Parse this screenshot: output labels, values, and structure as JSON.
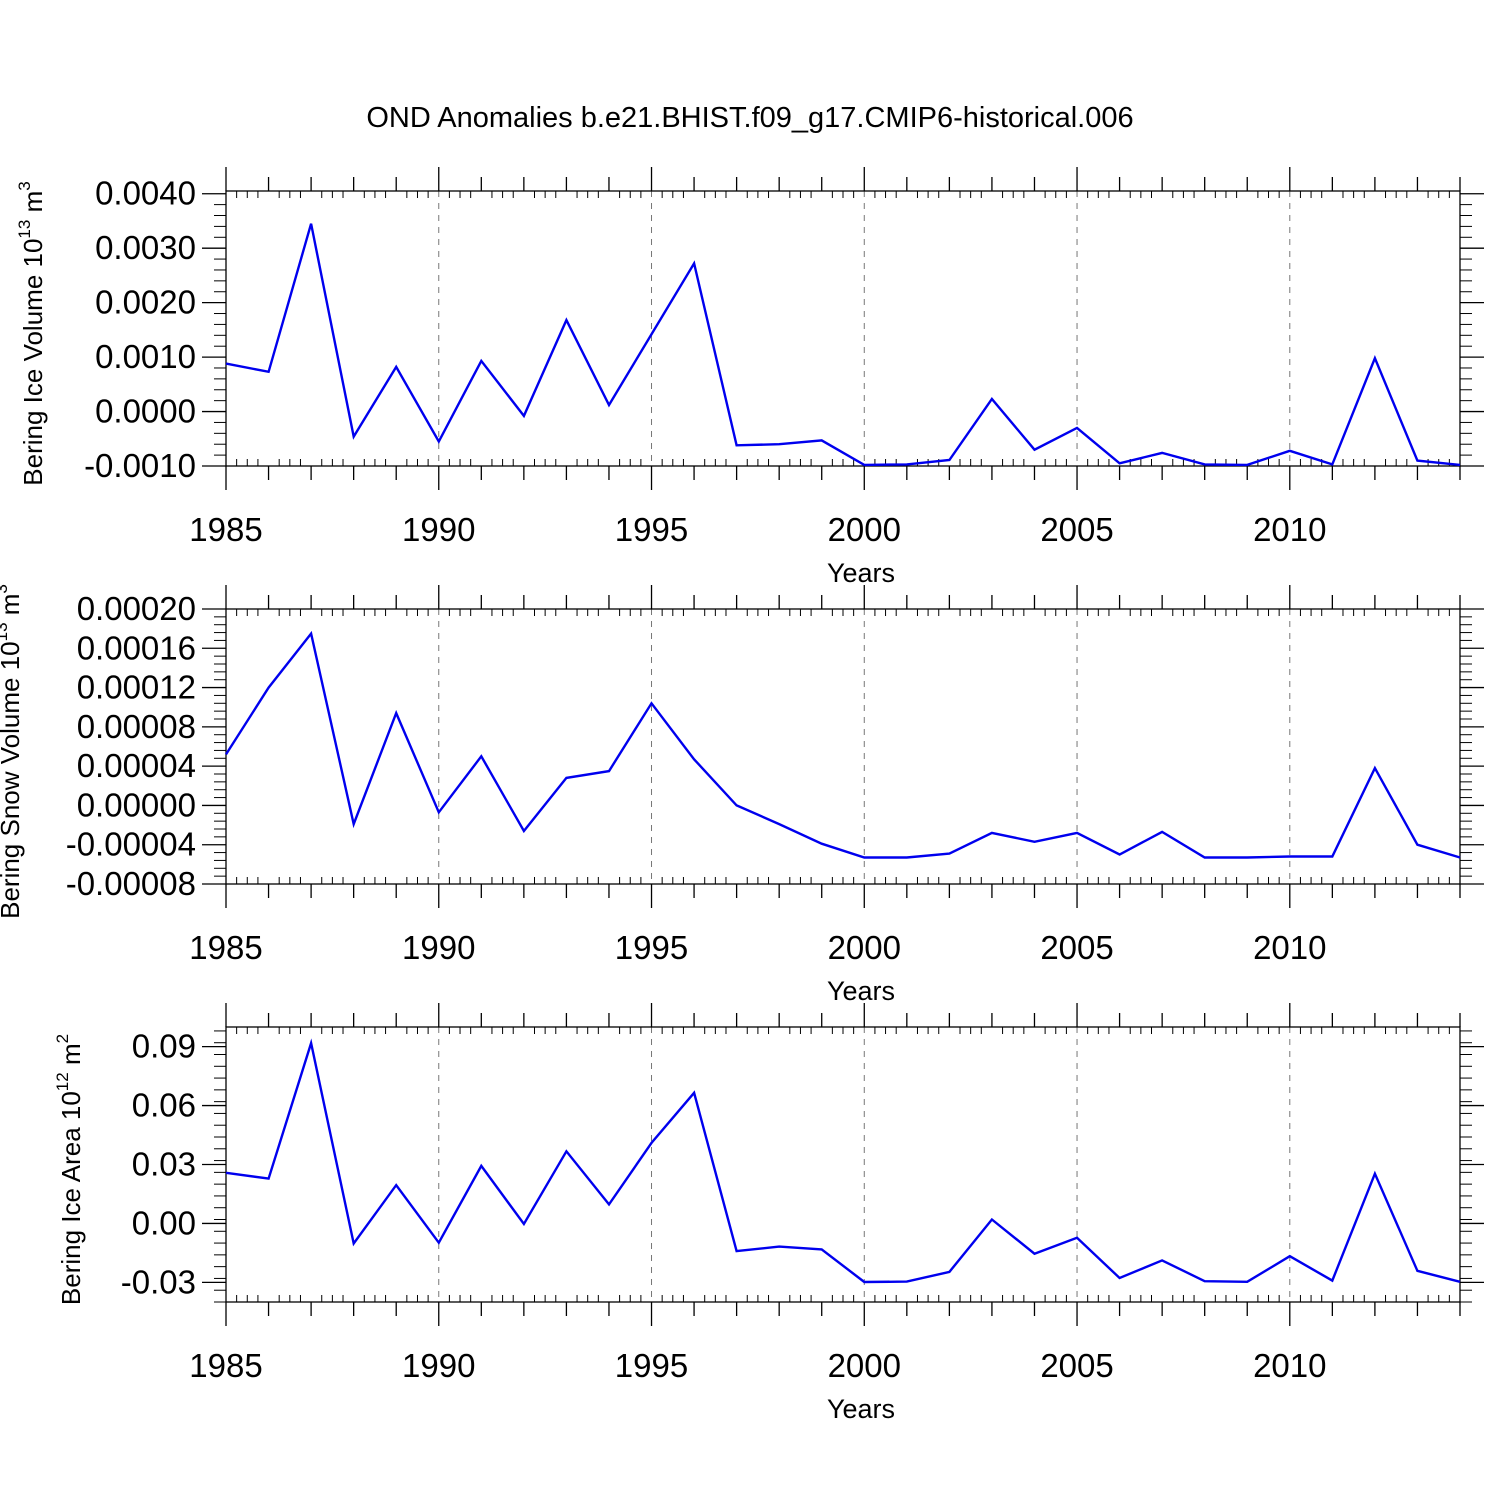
{
  "figure_title": "OND Anomalies b.e21.BHIST.f09_g17.CMIP6-historical.006",
  "line_color": "#0000ee",
  "chart_data": [
    {
      "type": "line",
      "ylabel_main": "Bering Ice Volume 10",
      "ylabel_exp": "13",
      "ylabel_unit": " m",
      "ylabel_unit_exp": "3",
      "xlabel": "Years",
      "xlim": [
        1985,
        2014
      ],
      "ylim": [
        -0.001,
        0.00405
      ],
      "xticks": [
        1985,
        1990,
        1995,
        2000,
        2005,
        2010
      ],
      "xtick_labels": [
        "1985",
        "1990",
        "1995",
        "2000",
        "2005",
        "2010"
      ],
      "yticks": [
        -0.001,
        0.0,
        0.001,
        0.002,
        0.003,
        0.004
      ],
      "ytick_labels": [
        "-0.0010",
        "0.0000",
        "0.0010",
        "0.0020",
        "0.0030",
        "0.0040"
      ],
      "series": [
        {
          "name": "Bering Ice Volume",
          "x": [
            1985,
            1986,
            1987,
            1988,
            1989,
            1990,
            1991,
            1992,
            1993,
            1994,
            1995,
            1996,
            1997,
            1998,
            1999,
            2000,
            2001,
            2002,
            2003,
            2004,
            2005,
            2006,
            2007,
            2008,
            2009,
            2010,
            2011,
            2012,
            2013,
            2014
          ],
          "values": [
            0.00088,
            0.00073,
            0.00345,
            -0.00046,
            0.00082,
            -0.00055,
            0.00093,
            -8e-05,
            0.00168,
            0.00012,
            0.00142,
            0.00272,
            -0.00062,
            -0.0006,
            -0.00053,
            -0.00098,
            -0.00097,
            -0.00089,
            0.00023,
            -0.0007,
            -0.0003,
            -0.00095,
            -0.00076,
            -0.00097,
            -0.00098,
            -0.00072,
            -0.00097,
            0.00098,
            -0.0009,
            -0.00098
          ]
        }
      ]
    },
    {
      "type": "line",
      "ylabel_main": "Bering Snow Volume 10",
      "ylabel_exp": "13",
      "ylabel_unit": " m",
      "ylabel_unit_exp": "3",
      "xlabel": "Years",
      "xlim": [
        1985,
        2014
      ],
      "ylim": [
        -8e-05,
        0.0002
      ],
      "xticks": [
        1985,
        1990,
        1995,
        2000,
        2005,
        2010
      ],
      "xtick_labels": [
        "1985",
        "1990",
        "1995",
        "2000",
        "2005",
        "2010"
      ],
      "yticks": [
        -8e-05,
        -4e-05,
        0.0,
        4e-05,
        8e-05,
        0.00012,
        0.00016,
        0.0002
      ],
      "ytick_labels": [
        "-0.00008",
        "-0.00004",
        "0.00000",
        "0.00004",
        "0.00008",
        "0.00012",
        "0.00016",
        "0.00020"
      ],
      "series": [
        {
          "name": "Bering Snow Volume",
          "x": [
            1985,
            1986,
            1987,
            1988,
            1989,
            1990,
            1991,
            1992,
            1993,
            1994,
            1995,
            1996,
            1997,
            1998,
            1999,
            2000,
            2001,
            2002,
            2003,
            2004,
            2005,
            2006,
            2007,
            2008,
            2009,
            2010,
            2011,
            2012,
            2013,
            2014
          ],
          "values": [
            5.2e-05,
            0.00012,
            0.000175,
            -1.9e-05,
            9.4e-05,
            -7e-06,
            5e-05,
            -2.6e-05,
            2.8e-05,
            3.5e-05,
            0.000104,
            4.7e-05,
            0.0,
            -1.9e-05,
            -3.9e-05,
            -5.3e-05,
            -5.3e-05,
            -4.9e-05,
            -2.8e-05,
            -3.7e-05,
            -2.8e-05,
            -5e-05,
            -2.7e-05,
            -5.3e-05,
            -5.3e-05,
            -5.2e-05,
            -5.2e-05,
            3.8e-05,
            -4e-05,
            -5.3e-05
          ]
        }
      ]
    },
    {
      "type": "line",
      "ylabel_main": "Bering Ice Area 10",
      "ylabel_exp": "12",
      "ylabel_unit": " m",
      "ylabel_unit_exp": "2",
      "xlabel": "Years",
      "xlim": [
        1985,
        2014
      ],
      "ylim": [
        -0.04,
        0.1
      ],
      "xticks": [
        1985,
        1990,
        1995,
        2000,
        2005,
        2010
      ],
      "xtick_labels": [
        "1985",
        "1990",
        "1995",
        "2000",
        "2005",
        "2010"
      ],
      "yticks": [
        -0.03,
        0.0,
        0.03,
        0.06,
        0.09
      ],
      "ytick_labels": [
        "-0.03",
        "0.00",
        "0.03",
        "0.06",
        "0.09"
      ],
      "series": [
        {
          "name": "Bering Ice Area",
          "x": [
            1985,
            1986,
            1987,
            1988,
            1989,
            1990,
            1991,
            1992,
            1993,
            1994,
            1995,
            1996,
            1997,
            1998,
            1999,
            2000,
            2001,
            2002,
            2003,
            2004,
            2005,
            2006,
            2007,
            2008,
            2009,
            2010,
            2011,
            2012,
            2013,
            2014
          ],
          "values": [
            0.0258,
            0.0228,
            0.0918,
            -0.0102,
            0.0195,
            -0.0098,
            0.0293,
            -0.0003,
            0.0367,
            0.0097,
            0.041,
            0.0665,
            -0.0141,
            -0.0118,
            -0.0132,
            -0.0298,
            -0.0296,
            -0.0247,
            0.002,
            -0.0154,
            -0.0073,
            -0.0278,
            -0.0188,
            -0.0294,
            -0.0297,
            -0.0167,
            -0.0291,
            0.0253,
            -0.0241,
            -0.0297
          ]
        }
      ]
    }
  ]
}
